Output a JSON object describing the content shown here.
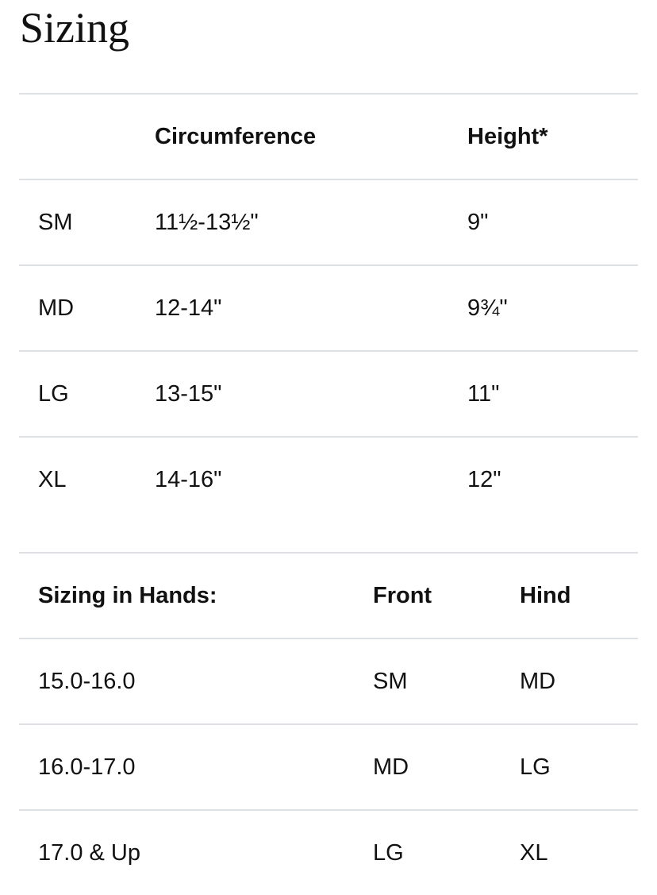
{
  "title": "Sizing",
  "table1": {
    "headers": [
      "",
      "Circumference",
      "Height*"
    ],
    "rows": [
      [
        "SM",
        "11½-13½\"",
        "9\""
      ],
      [
        "MD",
        "12-14\"",
        "9¾\""
      ],
      [
        "LG",
        "13-15\"",
        "11\""
      ],
      [
        "XL",
        "14-16\"",
        "12\""
      ]
    ]
  },
  "table2": {
    "headers": [
      "Sizing in Hands:",
      "Front",
      "Hind"
    ],
    "rows": [
      [
        "15.0-16.0",
        "SM",
        "MD"
      ],
      [
        "16.0-17.0",
        "MD",
        "LG"
      ],
      [
        "17.0 & Up",
        "LG",
        "XL"
      ]
    ]
  }
}
